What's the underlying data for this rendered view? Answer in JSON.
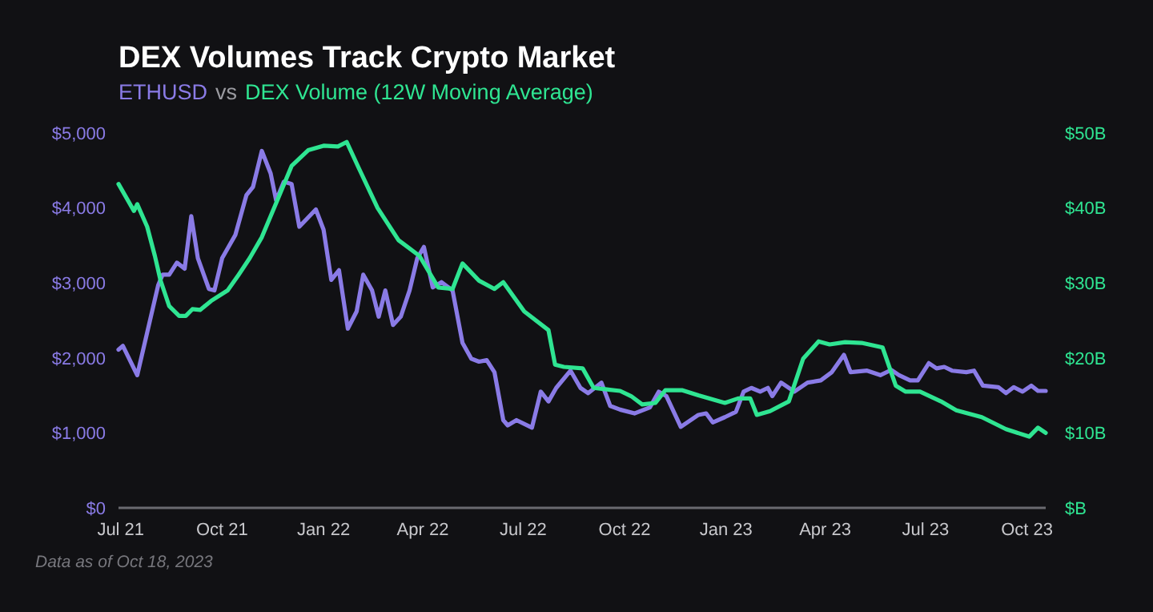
{
  "chart_data": {
    "type": "line",
    "title": "DEX Volumes Track Crypto Market",
    "subtitle": "vs",
    "legend": "top left",
    "grid": false,
    "line_style": "solid",
    "marker": "none",
    "xlim": [
      "2021-06-29",
      "2023-10-18"
    ],
    "xticks": [
      {
        "value": "2021-07-01",
        "label": "Jul 21"
      },
      {
        "value": "2021-10-01",
        "label": "Oct 21"
      },
      {
        "value": "2022-01-01",
        "label": "Jan 22"
      },
      {
        "value": "2022-04-01",
        "label": "Apr 22"
      },
      {
        "value": "2022-07-01",
        "label": "Jul 22"
      },
      {
        "value": "2022-10-01",
        "label": "Oct 22"
      },
      {
        "value": "2023-01-01",
        "label": "Jan 23"
      },
      {
        "value": "2023-04-01",
        "label": "Apr 23"
      },
      {
        "value": "2023-07-01",
        "label": "Jul 23"
      },
      {
        "value": "2023-10-01",
        "label": "Oct 23"
      }
    ],
    "ylim": [
      0,
      5000
    ],
    "yticks": [
      {
        "value": 0,
        "label": "$0"
      },
      {
        "value": 1000,
        "label": "$1,000"
      },
      {
        "value": 2000,
        "label": "$2,000"
      },
      {
        "value": 3000,
        "label": "$3,000"
      },
      {
        "value": 4000,
        "label": "$4,000"
      },
      {
        "value": 5000,
        "label": "$5,000"
      }
    ],
    "y2lim": [
      0,
      50
    ],
    "y2ticks": [
      {
        "value": 0,
        "label": "$B"
      },
      {
        "value": 10,
        "label": "$10B"
      },
      {
        "value": 20,
        "label": "$20B"
      },
      {
        "value": 30,
        "label": "$30B"
      },
      {
        "value": 40,
        "label": "$40B"
      },
      {
        "value": 50,
        "label": "$50B"
      }
    ],
    "annotations": [
      "Data as of Oct 18, 2023"
    ],
    "series": [
      {
        "name": "ETHUSD",
        "color": "#8a7be6",
        "x": [
          "2021-06-29",
          "2021-07-03",
          "2021-07-16",
          "2021-08-04",
          "2021-08-08",
          "2021-08-14",
          "2021-08-21",
          "2021-08-28",
          "2021-09-03",
          "2021-09-09",
          "2021-09-19",
          "2021-09-24",
          "2021-10-01",
          "2021-10-13",
          "2021-10-23",
          "2021-10-29",
          "2021-11-06",
          "2021-11-14",
          "2021-11-19",
          "2021-11-26",
          "2021-12-03",
          "2021-12-10",
          "2021-12-25",
          "2022-01-01",
          "2022-01-08",
          "2022-01-15",
          "2022-01-23",
          "2022-01-31",
          "2022-02-06",
          "2022-02-14",
          "2022-02-20",
          "2022-02-26",
          "2022-03-05",
          "2022-03-12",
          "2022-03-20",
          "2022-03-27",
          "2022-04-02",
          "2022-04-10",
          "2022-04-18",
          "2022-04-28",
          "2022-05-07",
          "2022-05-15",
          "2022-05-22",
          "2022-05-29",
          "2022-06-05",
          "2022-06-13",
          "2022-06-17",
          "2022-06-25",
          "2022-07-09",
          "2022-07-17",
          "2022-07-24",
          "2022-07-31",
          "2022-08-13",
          "2022-08-22",
          "2022-08-29",
          "2022-09-10",
          "2022-09-18",
          "2022-09-27",
          "2022-10-10",
          "2022-10-24",
          "2022-11-01",
          "2022-11-08",
          "2022-11-21",
          "2022-12-07",
          "2022-12-14",
          "2022-12-20",
          "2022-12-31",
          "2023-01-10",
          "2023-01-17",
          "2023-01-24",
          "2023-02-01",
          "2023-02-08",
          "2023-02-12",
          "2023-02-20",
          "2023-03-04",
          "2023-03-16",
          "2023-03-28",
          "2023-04-07",
          "2023-04-18",
          "2023-04-24",
          "2023-05-09",
          "2023-05-21",
          "2023-05-31",
          "2023-06-07",
          "2023-06-17",
          "2023-06-24",
          "2023-07-04",
          "2023-07-11",
          "2023-07-18",
          "2023-07-25",
          "2023-08-07",
          "2023-08-14",
          "2023-08-22",
          "2023-09-05",
          "2023-09-12",
          "2023-09-19",
          "2023-09-27",
          "2023-10-05",
          "2023-10-11",
          "2023-10-18"
        ],
        "values": [
          2110,
          2160,
          1770,
          2970,
          3110,
          3110,
          3270,
          3190,
          3890,
          3330,
          2920,
          2900,
          3330,
          3640,
          4170,
          4280,
          4760,
          4460,
          4100,
          4350,
          4320,
          3750,
          3980,
          3710,
          3040,
          3170,
          2390,
          2620,
          3110,
          2900,
          2550,
          2900,
          2440,
          2550,
          2900,
          3330,
          3480,
          2940,
          3010,
          2900,
          2200,
          1990,
          1950,
          1970,
          1810,
          1170,
          1100,
          1170,
          1070,
          1550,
          1420,
          1600,
          1830,
          1600,
          1530,
          1670,
          1360,
          1310,
          1260,
          1340,
          1550,
          1490,
          1080,
          1240,
          1260,
          1140,
          1210,
          1280,
          1550,
          1600,
          1550,
          1600,
          1490,
          1670,
          1550,
          1670,
          1700,
          1810,
          2040,
          1810,
          1830,
          1770,
          1840,
          1770,
          1700,
          1700,
          1930,
          1860,
          1880,
          1830,
          1810,
          1830,
          1630,
          1610,
          1530,
          1610,
          1550,
          1630,
          1560,
          1560
        ]
      },
      {
        "name": "DEX Volume (12W Moving Average)",
        "color": "#2fe592",
        "axis": "y2",
        "x": [
          "2021-06-29",
          "2021-07-13",
          "2021-07-16",
          "2021-07-25",
          "2021-08-01",
          "2021-08-06",
          "2021-08-14",
          "2021-08-23",
          "2021-08-29",
          "2021-09-04",
          "2021-09-11",
          "2021-09-21",
          "2021-10-06",
          "2021-10-16",
          "2021-10-26",
          "2021-11-06",
          "2021-11-18",
          "2021-12-03",
          "2021-12-18",
          "2022-01-01",
          "2022-01-14",
          "2022-01-22",
          "2022-02-02",
          "2022-02-19",
          "2022-03-10",
          "2022-03-29",
          "2022-04-15",
          "2022-04-28",
          "2022-05-07",
          "2022-05-22",
          "2022-06-05",
          "2022-06-13",
          "2022-07-02",
          "2022-07-24",
          "2022-07-30",
          "2022-08-07",
          "2022-08-24",
          "2022-09-03",
          "2022-09-15",
          "2022-09-27",
          "2022-10-07",
          "2022-10-17",
          "2022-10-29",
          "2022-11-07",
          "2022-11-22",
          "2022-12-07",
          "2022-12-31",
          "2023-01-12",
          "2023-01-23",
          "2023-01-29",
          "2023-02-10",
          "2023-02-27",
          "2023-03-12",
          "2023-03-26",
          "2023-04-05",
          "2023-04-19",
          "2023-05-04",
          "2023-05-23",
          "2023-06-04",
          "2023-06-13",
          "2023-06-26",
          "2023-07-15",
          "2023-07-29",
          "2023-08-21",
          "2023-09-12",
          "2023-10-03",
          "2023-10-11",
          "2023-10-18"
        ],
        "values": [
          43.2,
          39.6,
          40.5,
          37.5,
          33.6,
          30.4,
          26.9,
          25.6,
          25.6,
          26.5,
          26.4,
          27.6,
          29.0,
          31.1,
          33.3,
          36.1,
          40.3,
          45.6,
          47.7,
          48.3,
          48.2,
          48.8,
          45.3,
          40.0,
          35.7,
          33.6,
          29.4,
          29.2,
          32.6,
          30.3,
          29.2,
          30.1,
          26.2,
          23.7,
          19.1,
          18.8,
          18.6,
          16.0,
          15.8,
          15.6,
          14.9,
          13.8,
          14.0,
          15.7,
          15.7,
          15.0,
          14.0,
          14.6,
          14.6,
          12.4,
          12.9,
          14.2,
          19.9,
          22.2,
          21.8,
          22.1,
          22.0,
          21.4,
          16.3,
          15.5,
          15.5,
          14.2,
          13.0,
          12.1,
          10.5,
          9.5,
          10.7,
          10.0
        ]
      }
    ]
  }
}
